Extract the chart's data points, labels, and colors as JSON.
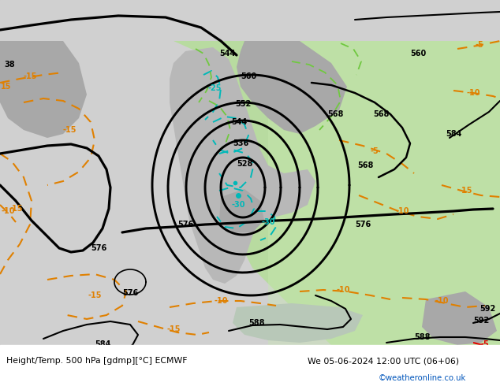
{
  "title_left": "Height/Temp. 500 hPa [gdmp][°C] ECMWF",
  "title_right": "We 05-06-2024 12:00 UTC (06+06)",
  "credit": "©weatheronline.co.uk",
  "bg_gray": "#c8c8c8",
  "land_green": "#b8dba0",
  "land_green2": "#c8e8b0",
  "land_gray": "#a8a8a8",
  "land_gray2": "#b8b8b8",
  "sea_light": "#d8d8d8",
  "z500_color": "#000000",
  "temp_orange": "#e08000",
  "temp_cyan": "#00b8b8",
  "temp_red": "#e00000",
  "green_line": "#70c840",
  "bottom_white": "#ffffff",
  "credit_color": "#0055bb",
  "figw": 6.34,
  "figh": 4.9,
  "dpi": 100
}
